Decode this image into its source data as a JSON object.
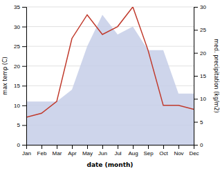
{
  "chart_data": {
    "type": "line",
    "categories": [
      "Jan",
      "Feb",
      "Mar",
      "Apr",
      "May",
      "Jun",
      "Jul",
      "Aug",
      "Sep",
      "Oct",
      "Nov",
      "Dec"
    ],
    "series": [
      {
        "type": "area",
        "color": "#c5cee8",
        "values": [
          11,
          11,
          11,
          14,
          25,
          33,
          28,
          30,
          24,
          24,
          13,
          13
        ]
      },
      {
        "type": "line",
        "color": "#c0392b",
        "values": [
          7,
          8,
          11,
          27,
          33,
          28,
          30,
          35,
          24,
          10,
          10,
          9
        ]
      }
    ],
    "xlabel": "date (month)",
    "ylabel": "max temp (C)",
    "y2label": "med. precipitation (kg/m2)",
    "ylim": [
      0,
      35
    ],
    "yticks": [
      0,
      5,
      10,
      15,
      20,
      25,
      30,
      35
    ],
    "y2lim": [
      0,
      30
    ],
    "y2ticks": [
      0,
      5,
      10,
      15,
      20,
      25,
      30
    ],
    "grid": true
  }
}
